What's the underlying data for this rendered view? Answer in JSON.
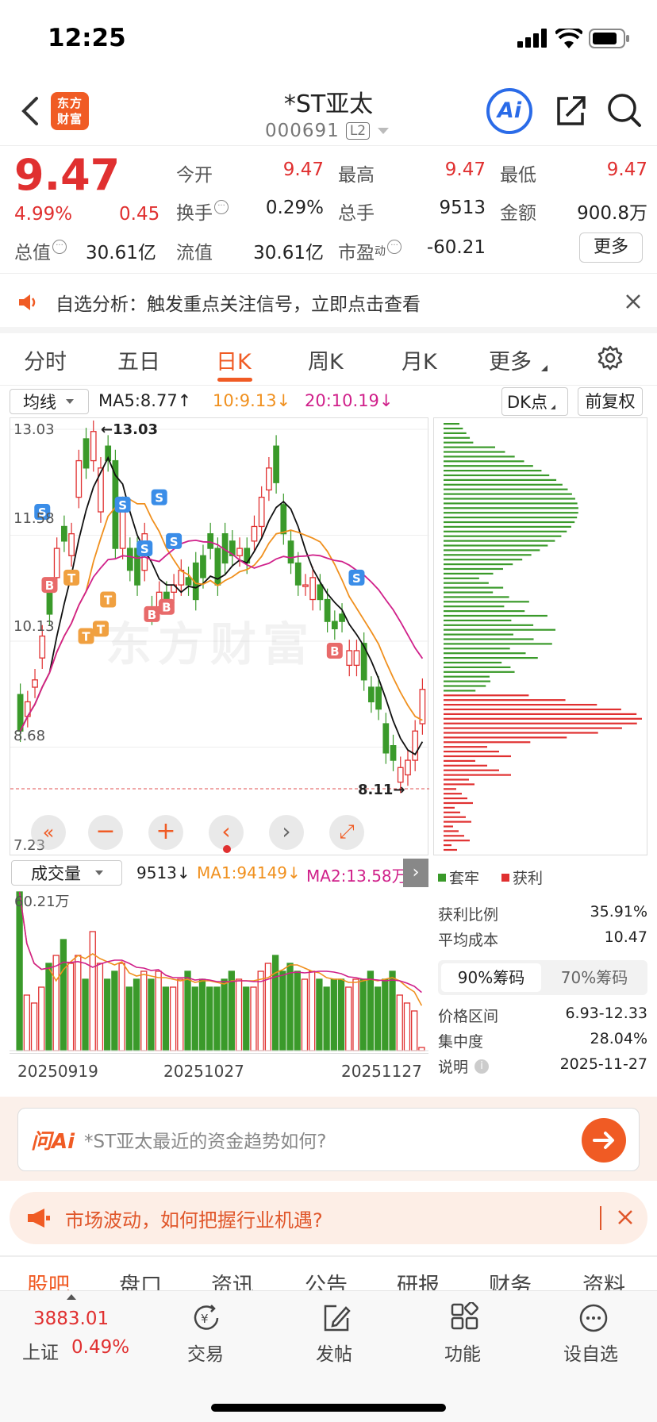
{
  "status_bar": {
    "time": "12:25"
  },
  "header": {
    "title": "*ST亚太",
    "code": "000691",
    "level": "L2",
    "logo_text": "东方财富",
    "ai_label": "Ai"
  },
  "quote": {
    "price": "9.47",
    "change_pct": "4.99%",
    "change": "0.45",
    "fields": [
      {
        "label": "今开",
        "value": "9.47",
        "red": true
      },
      {
        "label": "最高",
        "value": "9.47",
        "red": true
      },
      {
        "label": "最低",
        "value": "9.47",
        "red": true
      },
      {
        "label": "换手",
        "value": "0.29%",
        "red": false
      },
      {
        "label": "总手",
        "value": "9513",
        "red": false
      },
      {
        "label": "金额",
        "value": "900.8万",
        "red": false
      },
      {
        "label": "总值",
        "value": "30.61亿",
        "red": false
      },
      {
        "label": "流值",
        "value": "30.61亿",
        "red": false
      },
      {
        "label": "市盈",
        "label_sup": "动",
        "value": "-60.21",
        "red": false
      }
    ],
    "more_button": "更多"
  },
  "banner": {
    "text": "自选分析：触发重点关注信号，立即点击查看"
  },
  "period_tabs": [
    "分时",
    "五日",
    "日K",
    "周K",
    "月K",
    "更多"
  ],
  "active_tab": "日K",
  "indicator_bar": {
    "select": "均线",
    "ma5": "MA5:8.77↑",
    "ma10": "10:9.13↓",
    "ma20": "20:10.19↓",
    "dk": "DK点",
    "adjust": "前复权"
  },
  "chart_data": {
    "type": "candlestick",
    "y_ticks": [
      "13.03",
      "11.58",
      "10.13",
      "8.68",
      "7.23"
    ],
    "ylim": [
      7.23,
      13.03
    ],
    "x_labels": [
      "20250919",
      "20251027",
      "20251127"
    ],
    "annotations": {
      "high": "13.03",
      "low": "8.11"
    },
    "candles": [
      {
        "o": 9.4,
        "c": 8.9
      },
      {
        "o": 9.1,
        "c": 9.3
      },
      {
        "o": 9.5,
        "c": 9.6
      },
      {
        "o": 9.9,
        "c": 10.2
      },
      {
        "o": 10.8,
        "c": 10.5
      },
      {
        "o": 11.0,
        "c": 11.4
      },
      {
        "o": 11.7,
        "c": 11.5
      },
      {
        "o": 11.3,
        "c": 11.6
      },
      {
        "o": 12.1,
        "c": 12.6
      },
      {
        "o": 12.9,
        "c": 12.5
      },
      {
        "o": 12.6,
        "c": 13.0
      },
      {
        "o": 11.9,
        "c": 12.5
      },
      {
        "o": 12.8,
        "c": 12.6
      },
      {
        "o": 12.6,
        "c": 11.4
      },
      {
        "o": 11.4,
        "c": 11.9
      },
      {
        "o": 11.4,
        "c": 11.1
      },
      {
        "o": 11.4,
        "c": 10.9
      },
      {
        "o": 11.1,
        "c": 11.6
      },
      {
        "o": 10.6,
        "c": 10.5
      },
      {
        "o": 10.6,
        "c": 10.8
      },
      {
        "o": 10.8,
        "c": 10.7
      },
      {
        "o": 10.8,
        "c": 10.9
      },
      {
        "o": 10.9,
        "c": 11.1
      },
      {
        "o": 11.0,
        "c": 10.9
      },
      {
        "o": 11.2,
        "c": 10.7
      },
      {
        "o": 11.3,
        "c": 11.0
      },
      {
        "o": 11.6,
        "c": 11.4
      },
      {
        "o": 11.4,
        "c": 10.9
      },
      {
        "o": 11.6,
        "c": 11.2
      },
      {
        "o": 11.5,
        "c": 11.3
      },
      {
        "o": 11.3,
        "c": 11.4
      },
      {
        "o": 11.4,
        "c": 11.2
      },
      {
        "o": 11.5,
        "c": 11.7
      },
      {
        "o": 11.7,
        "c": 12.1
      },
      {
        "o": 12.2,
        "c": 12.5
      },
      {
        "o": 12.8,
        "c": 12.3
      },
      {
        "o": 12.0,
        "c": 11.6
      },
      {
        "o": 11.5,
        "c": 11.2
      },
      {
        "o": 11.2,
        "c": 10.9
      },
      {
        "o": 10.9,
        "c": 10.9
      },
      {
        "o": 10.7,
        "c": 11.0
      },
      {
        "o": 10.9,
        "c": 10.7
      },
      {
        "o": 10.7,
        "c": 10.4
      },
      {
        "o": 10.4,
        "c": 10.3
      },
      {
        "o": 10.5,
        "c": 10.4
      },
      {
        "o": 9.8,
        "c": 10.0
      },
      {
        "o": 9.8,
        "c": 10.0
      },
      {
        "o": 10.1,
        "c": 9.6
      },
      {
        "o": 9.5,
        "c": 9.3
      },
      {
        "o": 9.5,
        "c": 9.2
      },
      {
        "o": 9.0,
        "c": 8.6
      },
      {
        "o": 8.7,
        "c": 8.5
      },
      {
        "o": 8.2,
        "c": 8.4
      },
      {
        "o": 8.3,
        "c": 8.5
      },
      {
        "o": 8.5,
        "c": 8.9
      },
      {
        "o": 9.0,
        "c": 9.47
      }
    ],
    "markers": [
      "S",
      "B",
      "S",
      "T",
      "T",
      "S",
      "T",
      "B",
      "S",
      "T",
      "S",
      "B",
      "B",
      "S"
    ],
    "volume_title": "成交量",
    "volume_value": "9513↓",
    "vol_ma1": "MA1:94149↓",
    "vol_ma2": "MA2:13.58万",
    "volume_max_label": "60.21万"
  },
  "chips": {
    "legend_trapped": "套牢",
    "legend_profit": "获利",
    "rows": [
      {
        "label": "获利比例",
        "value": "35.91%"
      },
      {
        "label": "平均成本",
        "value": "10.47"
      }
    ],
    "tabs": [
      "90%筹码",
      "70%筹码"
    ],
    "rows2": [
      {
        "label": "价格区间",
        "value": "6.93-12.33"
      },
      {
        "label": "集中度",
        "value": "28.04%"
      },
      {
        "label": "说明",
        "value": "2025-11-27"
      }
    ]
  },
  "ask_ai": {
    "placeholder": "*ST亚太最近的资金趋势如何?",
    "logo": "问Ai"
  },
  "promo": {
    "text": "市场波动，如何把握行业机遇?"
  },
  "sub_tabs": [
    "股吧",
    "盘口",
    "资讯",
    "公告",
    "研报",
    "财务",
    "资料"
  ],
  "bottom_nav": {
    "index_value": "3883.01",
    "index_name": "上证",
    "index_pct": "0.49%",
    "items": [
      "交易",
      "发帖",
      "功能",
      "设自选"
    ]
  }
}
